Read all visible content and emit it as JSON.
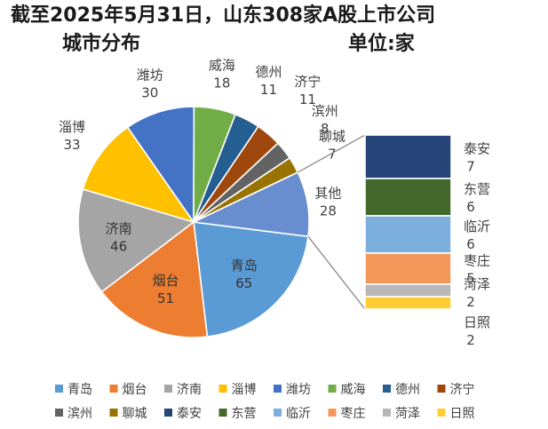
{
  "chart_data": {
    "type": "pie",
    "variant": "bar-of-pie",
    "title_line1": "截至2025年5月31日，山东308家A股上市公司",
    "title_line2": "城市分布",
    "unit_label": "单位:家",
    "categories": [
      "青岛",
      "烟台",
      "济南",
      "淄博",
      "潍坊",
      "威海",
      "德州",
      "济宁",
      "滨州",
      "聊城",
      "其他"
    ],
    "values": [
      65,
      51,
      46,
      33,
      30,
      18,
      11,
      11,
      8,
      7,
      28
    ],
    "colors": [
      "#5B9BD5",
      "#ED7D31",
      "#A5A5A5",
      "#FFC000",
      "#4472C4",
      "#70AD47",
      "#255E91",
      "#9E480E",
      "#636363",
      "#997300",
      "#698ED0"
    ],
    "other_breakdown": {
      "categories": [
        "泰安",
        "东营",
        "临沂",
        "枣庄",
        "菏泽",
        "日照"
      ],
      "values": [
        7,
        6,
        6,
        5,
        2,
        2
      ],
      "colors": [
        "#264478",
        "#43682B",
        "#7CAFDD",
        "#F1975A",
        "#B7B7B7",
        "#FFCD33"
      ]
    },
    "legend": {
      "placement": "bottom",
      "entries": [
        "青岛",
        "烟台",
        "济南",
        "淄博",
        "潍坊",
        "威海",
        "德州",
        "济宁",
        "滨州",
        "聊城",
        "泰安",
        "东营",
        "临沂",
        "枣庄",
        "菏泽",
        "日照"
      ]
    }
  }
}
